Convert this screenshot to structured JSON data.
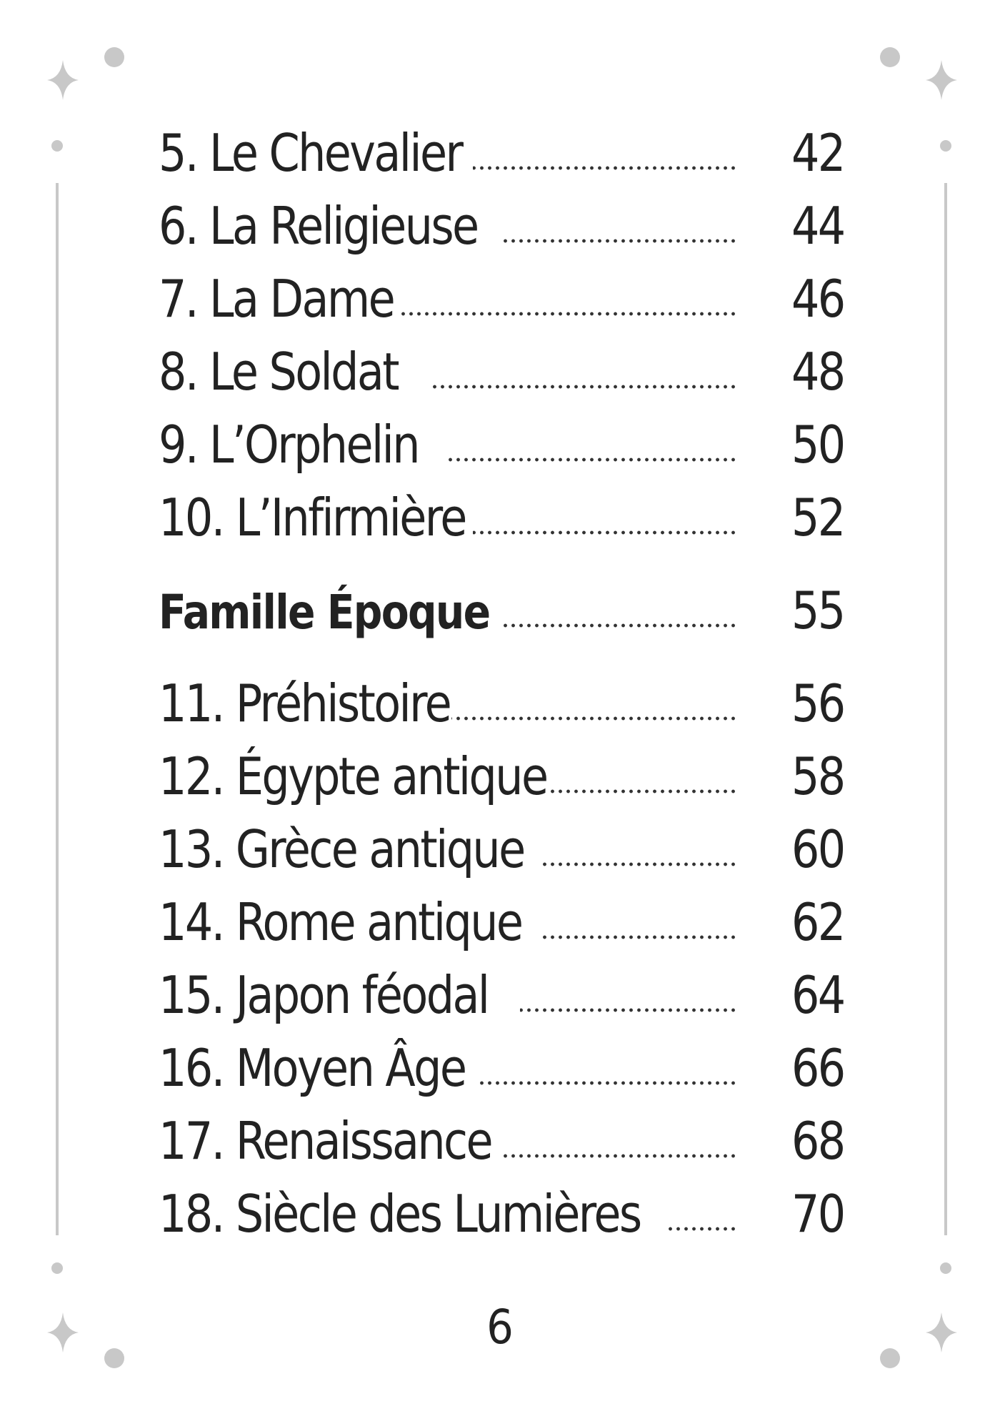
{
  "toc": {
    "entries": [
      {
        "title": "5. Le Chevalier",
        "page": "42",
        "type": "item"
      },
      {
        "title": "6. La Religieuse",
        "page": "44",
        "type": "item"
      },
      {
        "title": "7. La Dame",
        "page": "46",
        "type": "item"
      },
      {
        "title": "8. Le Soldat",
        "page": "48",
        "type": "item"
      },
      {
        "title": "9. L’Orphelin",
        "page": "50",
        "type": "item"
      },
      {
        "title": "10. L’Infirmière",
        "page": "52",
        "type": "item"
      },
      {
        "title": "Famille Époque",
        "page": "55",
        "type": "section"
      },
      {
        "title": "11. Préhistoire",
        "page": "56",
        "type": "item"
      },
      {
        "title": "12. Égypte antique",
        "page": "58",
        "type": "item"
      },
      {
        "title": "13. Grèce antique",
        "page": "60",
        "type": "item"
      },
      {
        "title": "14. Rome antique",
        "page": "62",
        "type": "item"
      },
      {
        "title": "15. Japon féodal",
        "page": "64",
        "type": "item"
      },
      {
        "title": "16. Moyen Âge",
        "page": "66",
        "type": "item"
      },
      {
        "title": "17. Renaissance",
        "page": "68",
        "type": "item"
      },
      {
        "title": "18. Siècle des Lumières",
        "page": "70",
        "type": "item"
      }
    ]
  },
  "folio": {
    "page_number": "6"
  },
  "decor": {
    "ornament_color": "#c8c8c8",
    "text_color": "#222222"
  }
}
